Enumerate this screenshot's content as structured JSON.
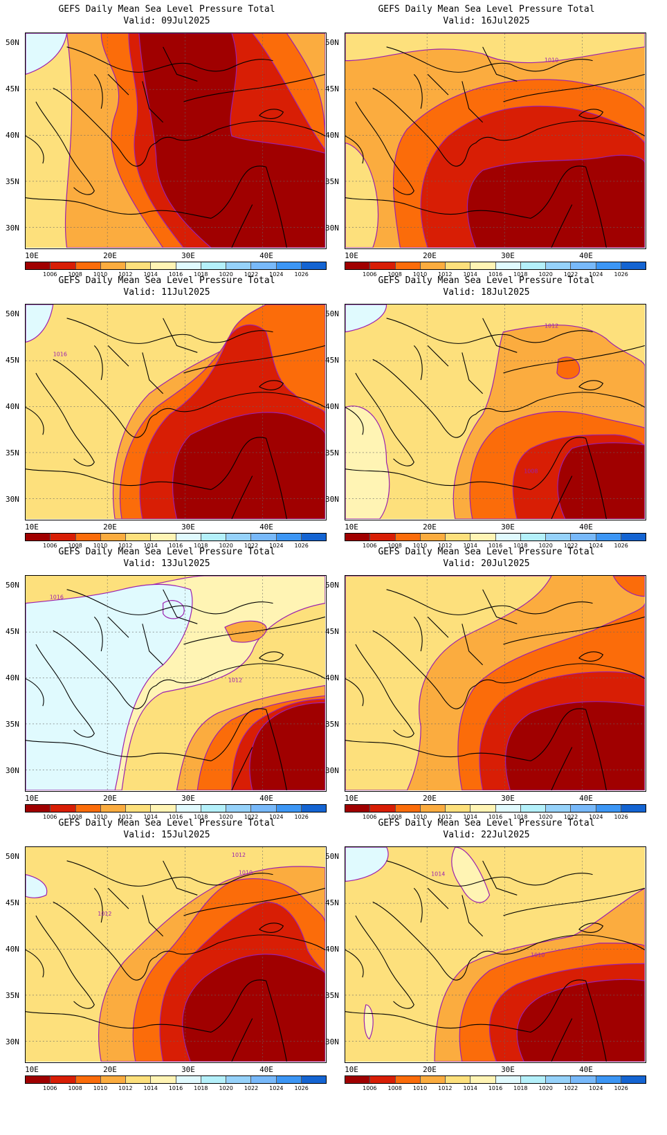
{
  "title": "GEFS Daily Mean Sea Level Pressure Total",
  "valid_prefix": "Valid:",
  "lat_labels": [
    "50N",
    "45N",
    "40N",
    "35N",
    "30N"
  ],
  "lon_labels": [
    "10E",
    "20E",
    "30E",
    "40E"
  ],
  "colorbar": {
    "labels": [
      "1006",
      "1008",
      "1010",
      "1012",
      "1014",
      "1016",
      "1018",
      "1020",
      "1022",
      "1024",
      "1026"
    ],
    "colors": [
      "#a00000",
      "#d81e05",
      "#fb6c0a",
      "#fbac3f",
      "#fde07c",
      "#fff4b4",
      "#e0fafe",
      "#b4f0fa",
      "#96d2fa",
      "#78b9fa",
      "#3c96f5",
      "#1464d2"
    ]
  },
  "panels": [
    {
      "valid": "09Jul2025",
      "contours": []
    },
    {
      "valid": "16Jul2025",
      "contours": [
        "1010"
      ]
    },
    {
      "valid": "11Jul2025",
      "contours": [
        "1016"
      ]
    },
    {
      "valid": "18Jul2025",
      "contours": [
        "1012",
        "1008"
      ]
    },
    {
      "valid": "13Jul2025",
      "contours": [
        "1016",
        "1012"
      ]
    },
    {
      "valid": "20Jul2025",
      "contours": []
    },
    {
      "valid": "15Jul2025",
      "contours": [
        "1012",
        "1010",
        "1012"
      ]
    },
    {
      "valid": "22Jul2025",
      "contours": [
        "1014",
        "1010"
      ]
    }
  ]
}
